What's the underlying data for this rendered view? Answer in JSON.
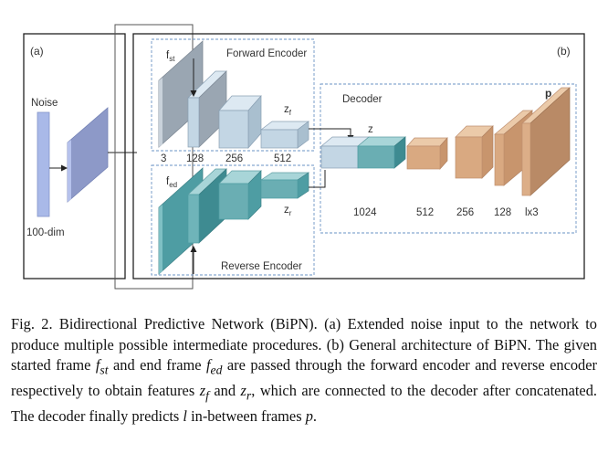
{
  "panel_a": {
    "label": "(a)",
    "noise_label": "Noise",
    "dim_label": "100-dim"
  },
  "panel_b": {
    "label": "(b)",
    "forward_title": "Forward Encoder",
    "reverse_title": "Reverse Encoder",
    "decoder_title": "Decoder",
    "fst": "f",
    "fst_sub": "st",
    "fed": "f",
    "fed_sub": "ed",
    "zf": "z",
    "zf_sub": "f",
    "zr": "z",
    "zr_sub": "r",
    "z": "z",
    "p": "p",
    "encoder_dims": [
      "3",
      "128",
      "256",
      "512"
    ],
    "decoder_dims": [
      "1024",
      "512",
      "256",
      "128",
      "lx3"
    ]
  },
  "colors": {
    "noise_blue": "#a9b9e8",
    "noise_plane": "#8d99c8",
    "forward_gray": "#9aa6b2",
    "forward_light": "#c3d6e4",
    "reverse_teal": "#4e9da3",
    "decoder_tan": "#d9a981",
    "p_brown": "#b98a66"
  },
  "caption": {
    "prefix": "Fig. 2.  Bidirectional Predictive Network (BiPN). (a) Extended noise input to the network to produce multiple possible intermediate procedures. (b) General architecture of BiPN. The given started frame ",
    "v_fst": "f",
    "v_fst_sub": "st",
    "mid1": " and end frame ",
    "v_fed": "f",
    "v_fed_sub": "ed",
    "mid2": " are passed through the forward encoder and reverse encoder respectively to obtain features ",
    "v_zf": "z",
    "v_zf_sub": "f",
    "mid3": " and ",
    "v_zr": "z",
    "v_zr_sub": "r",
    "mid4": ", which are connected to the decoder after concatenated. The decoder finally predicts ",
    "v_l": "l",
    "mid5": " in-between frames ",
    "v_p": "p",
    "end": "."
  }
}
